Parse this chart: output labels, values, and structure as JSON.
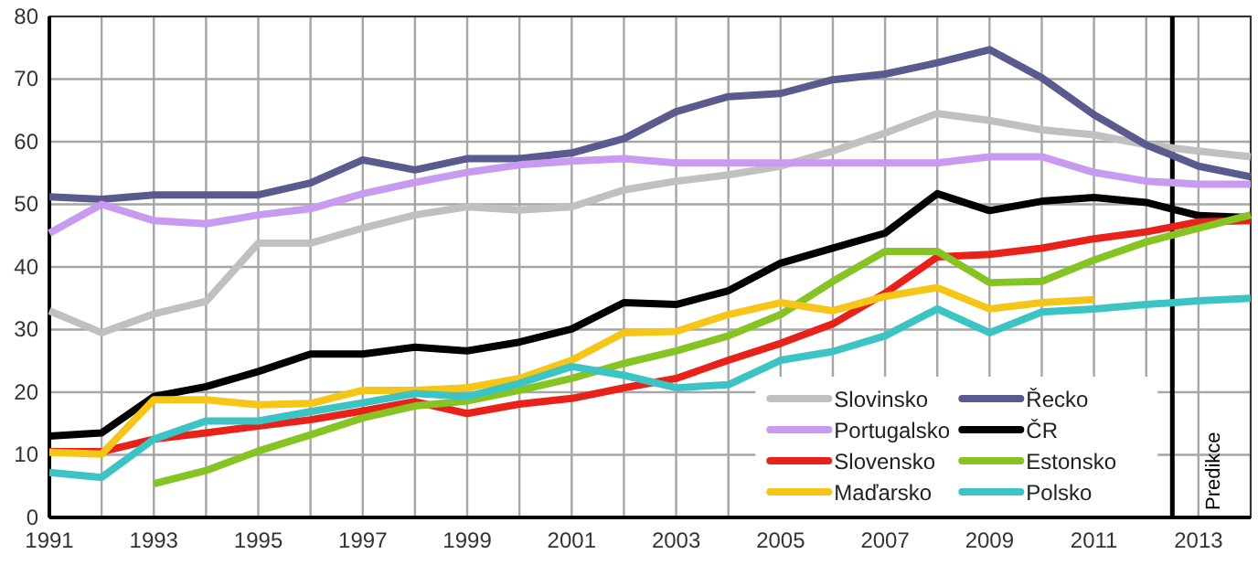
{
  "chart_data": {
    "type": "line",
    "x": [
      1991,
      1992,
      1993,
      1994,
      1995,
      1996,
      1997,
      1998,
      1999,
      2000,
      2001,
      2002,
      2003,
      2004,
      2005,
      2006,
      2007,
      2008,
      2009,
      2010,
      2011,
      2012,
      2013,
      2014
    ],
    "xlim": [
      1991,
      2014
    ],
    "ylim": [
      0,
      80
    ],
    "xticks": [
      1991,
      {
        "value": 1992,
        "label": null
      },
      1993,
      {
        "value": 1994,
        "label": null
      },
      1995,
      {
        "value": 1996,
        "label": null
      },
      1997,
      {
        "value": 1998,
        "label": null
      },
      1999,
      {
        "value": 2000,
        "label": null
      },
      2001,
      {
        "value": 2002,
        "label": null
      },
      2003,
      {
        "value": 2004,
        "label": null
      },
      2005,
      {
        "value": 2006,
        "label": null
      },
      2007,
      {
        "value": 2008,
        "label": null
      },
      2009,
      {
        "value": 2010,
        "label": null
      },
      2011,
      {
        "value": 2012,
        "label": null
      },
      2013,
      {
        "value": 2014,
        "label": null
      }
    ],
    "yticks": [
      0,
      10,
      20,
      30,
      40,
      50,
      60,
      70,
      80
    ],
    "grid": true,
    "legend": "bottom right",
    "marker": "none",
    "line_style": "solid",
    "ref_lines": [
      {
        "axis": "x",
        "value": 2012.5,
        "label": "Predikce",
        "color": "#000000"
      }
    ],
    "series": [
      {
        "name": "Slovinsko",
        "color": "#c0c0c0",
        "values": [
          33,
          29.5,
          32.5,
          34.5,
          43.8,
          43.8,
          46.2,
          48.3,
          49.6,
          49.1,
          49.6,
          52.3,
          53.7,
          54.7,
          56.1,
          58.5,
          61.4,
          64.5,
          63.4,
          61.9,
          61.1,
          59.5,
          58.5,
          57.6
        ]
      },
      {
        "name": "Řecko",
        "color": "#5b5a8e",
        "values": [
          51.2,
          50.8,
          51.5,
          51.5,
          51.5,
          53.4,
          57.1,
          55.5,
          57.3,
          57.3,
          58.2,
          60.5,
          64.8,
          67.2,
          67.7,
          69.9,
          70.8,
          72.6,
          74.7,
          70.2,
          64.3,
          59.5,
          56.1,
          54.4
        ]
      },
      {
        "name": "Portugalsko",
        "color": "#c89af0",
        "values": [
          45.4,
          50,
          47.4,
          46.9,
          48.3,
          49.3,
          51.7,
          53.5,
          55.1,
          56.3,
          56.9,
          57.3,
          56.6,
          56.6,
          56.6,
          56.6,
          56.6,
          56.6,
          57.6,
          57.6,
          55.1,
          53.7,
          53.2,
          53.2
        ]
      },
      {
        "name": "ČR",
        "color": "#000000",
        "values": [
          13,
          13.5,
          19.3,
          20.9,
          23.3,
          26.1,
          26.1,
          27.2,
          26.6,
          28,
          30.1,
          34.3,
          34,
          36.2,
          40.6,
          43,
          45.4,
          51.7,
          49,
          50.5,
          51.1,
          50.3,
          48.2,
          47.9
        ]
      },
      {
        "name": "Slovensko",
        "color": "#e8221a",
        "values": [
          10.5,
          10.5,
          12.5,
          13.5,
          14.6,
          15.6,
          17,
          18.5,
          16.6,
          18.1,
          19,
          20.7,
          22.2,
          25.1,
          27.8,
          30.9,
          35.8,
          41.6,
          42,
          43,
          44.5,
          45.6,
          47.2,
          47.4
        ]
      },
      {
        "name": "Estonsko",
        "color": "#86c423",
        "values": [
          null,
          null,
          5.4,
          7.5,
          10.6,
          13.2,
          15.9,
          17.8,
          18.6,
          20.3,
          22.2,
          24.6,
          26.6,
          29,
          32.4,
          37.7,
          42.5,
          42.5,
          37.5,
          37.7,
          41.1,
          44,
          46.2,
          48.3
        ]
      },
      {
        "name": "Maďarsko",
        "color": "#f5c518",
        "values": [
          10.4,
          10.1,
          18.8,
          18.8,
          18,
          18.2,
          20.3,
          20.3,
          20.7,
          22.2,
          25.1,
          29.5,
          29.7,
          32.4,
          34.3,
          33,
          35.3,
          36.7,
          33.3,
          34.3,
          34.8,
          null,
          null,
          null
        ]
      },
      {
        "name": "Polsko",
        "color": "#3cc4c4",
        "values": [
          7.2,
          6.4,
          12.5,
          15.4,
          15.4,
          16.9,
          18.3,
          19.8,
          19.3,
          21.4,
          24.1,
          22.7,
          20.7,
          21.2,
          25.1,
          26.5,
          29,
          33.3,
          29.5,
          32.8,
          33.3,
          34,
          34.6,
          35
        ]
      }
    ]
  }
}
